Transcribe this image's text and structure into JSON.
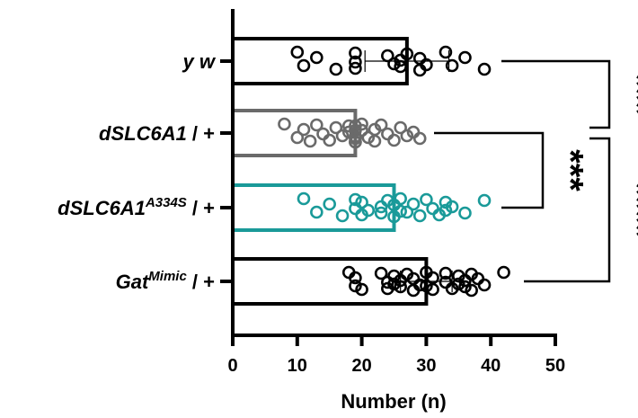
{
  "chart_data": {
    "type": "bar",
    "orientation": "horizontal",
    "xlabel": "Number (n)",
    "ylabel": "",
    "xlim": [
      0,
      50
    ],
    "xticks": [
      0,
      10,
      20,
      30,
      40,
      50
    ],
    "grid": false,
    "categories": [
      {
        "key": "yw",
        "parts": [
          {
            "text": "y w",
            "italic": true
          }
        ]
      },
      {
        "key": "dslc",
        "parts": [
          {
            "text": "dSLC6A1",
            "italic": true
          },
          {
            "text": " / +",
            "italic": false
          }
        ]
      },
      {
        "key": "a334s",
        "parts": [
          {
            "text": "dSLC6A1",
            "italic": true
          },
          {
            "text": "A334S",
            "italic": true,
            "sup": true
          },
          {
            "text": " / +",
            "italic": false
          }
        ]
      },
      {
        "key": "mimic",
        "parts": [
          {
            "text": "Gat",
            "italic": true
          },
          {
            "text": "Mimic",
            "italic": true,
            "sup": true
          },
          {
            "text": " / +",
            "italic": false
          }
        ]
      }
    ],
    "series": [
      {
        "category": "yw",
        "color": "#000000",
        "mean": 27,
        "sd": 6.5,
        "points": [
          10,
          11,
          13,
          16,
          19,
          19,
          19,
          24,
          25,
          26,
          26,
          27,
          29,
          29,
          30,
          33,
          34,
          36,
          39
        ]
      },
      {
        "category": "dslc",
        "color": "#6a6a6a",
        "mean": 19,
        "sd": 0,
        "points": [
          8,
          10,
          11,
          12,
          13,
          14,
          15,
          16,
          17,
          18,
          19,
          19,
          19,
          19,
          19,
          20,
          21,
          22,
          22,
          23,
          24,
          25,
          26,
          27,
          28,
          29,
          18,
          19,
          20,
          19
        ]
      },
      {
        "category": "a334s",
        "color": "#1a9a99",
        "mean": 25,
        "sd": 0,
        "points": [
          11,
          13,
          15,
          17,
          19,
          19,
          20,
          20,
          21,
          23,
          23,
          24,
          25,
          25,
          26,
          26,
          27,
          28,
          29,
          30,
          31,
          32,
          33,
          33,
          34,
          36,
          39
        ]
      },
      {
        "category": "mimic",
        "color": "#000000",
        "mean": 30,
        "sd": 4,
        "points": [
          18,
          19,
          19,
          20,
          23,
          24,
          24,
          25,
          25,
          26,
          26,
          27,
          28,
          28,
          29,
          30,
          30,
          31,
          31,
          33,
          33,
          34,
          35,
          35,
          36,
          36,
          37,
          37,
          38,
          39,
          42
        ]
      }
    ],
    "significance": [
      {
        "from": "yw",
        "to": "dslc",
        "label": "***"
      },
      {
        "from": "dslc",
        "to": "a334s",
        "label": "***"
      },
      {
        "from": "dslc",
        "to": "mimic",
        "label": "****"
      }
    ]
  }
}
